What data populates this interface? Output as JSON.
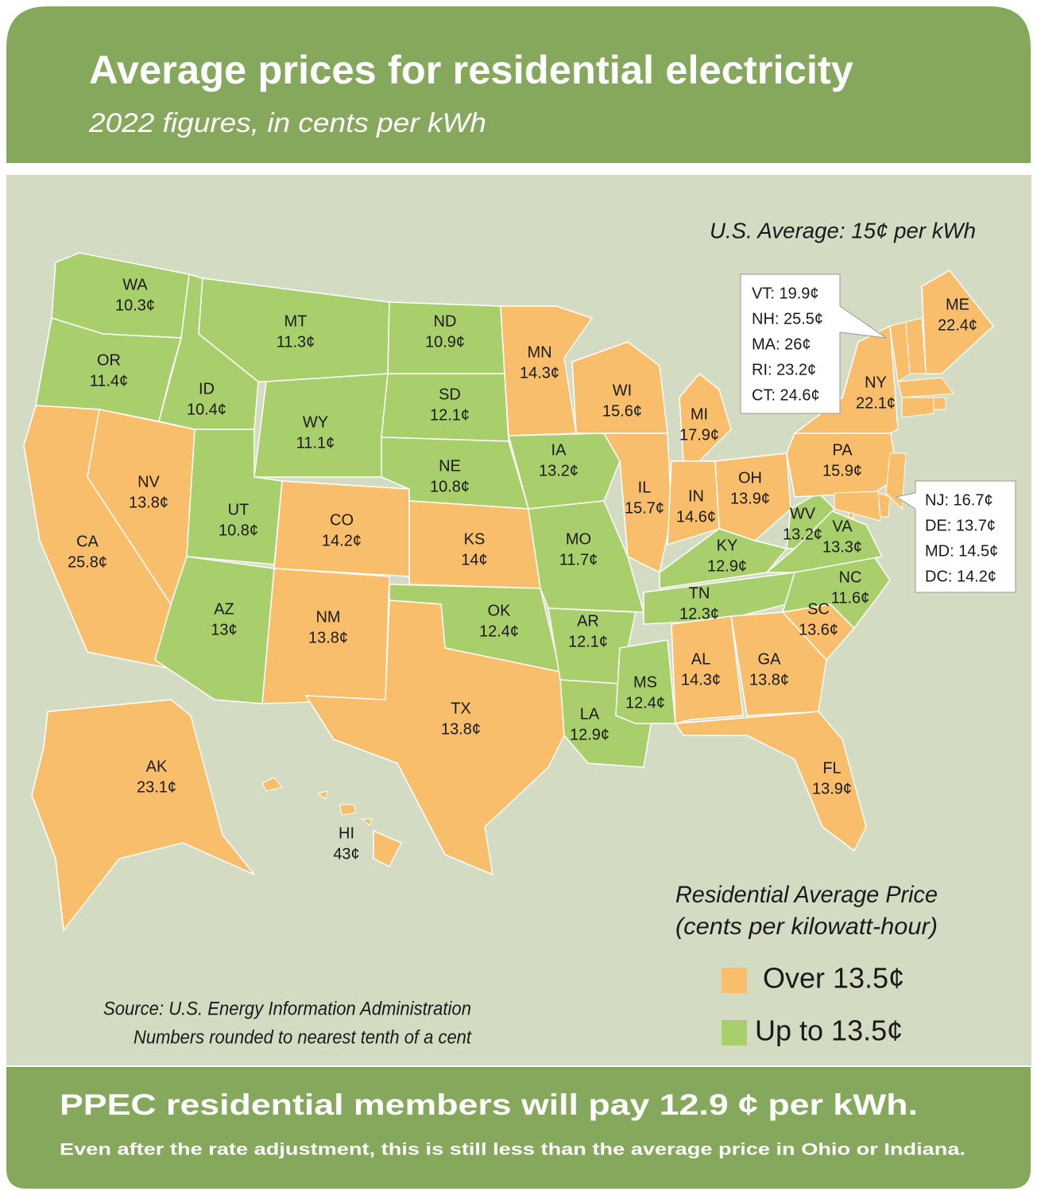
{
  "header": {
    "title": "Average prices for residential electricity",
    "subtitle": "2022 figures, in cents per kWh"
  },
  "us_average": "U.S. Average: 15¢ per kWh",
  "states": [
    {
      "abbr": "WA",
      "price": "10.3¢",
      "color": "#a9cf6d"
    },
    {
      "abbr": "OR",
      "price": "11.4¢",
      "color": "#a9cf6d"
    },
    {
      "abbr": "CA",
      "price": "25.8¢",
      "color": "#f9be6b"
    },
    {
      "abbr": "NV",
      "price": "13.8¢",
      "color": "#f9be6b"
    },
    {
      "abbr": "ID",
      "price": "10.4¢",
      "color": "#a9cf6d"
    },
    {
      "abbr": "MT",
      "price": "11.3¢",
      "color": "#a9cf6d"
    },
    {
      "abbr": "WY",
      "price": "11.1¢",
      "color": "#a9cf6d"
    },
    {
      "abbr": "UT",
      "price": "10.8¢",
      "color": "#a9cf6d"
    },
    {
      "abbr": "AZ",
      "price": "13¢",
      "color": "#a9cf6d"
    },
    {
      "abbr": "CO",
      "price": "14.2¢",
      "color": "#f9be6b"
    },
    {
      "abbr": "NM",
      "price": "13.8¢",
      "color": "#f9be6b"
    },
    {
      "abbr": "ND",
      "price": "10.9¢",
      "color": "#a9cf6d"
    },
    {
      "abbr": "SD",
      "price": "12.1¢",
      "color": "#a9cf6d"
    },
    {
      "abbr": "NE",
      "price": "10.8¢",
      "color": "#a9cf6d"
    },
    {
      "abbr": "KS",
      "price": "14¢",
      "color": "#f9be6b"
    },
    {
      "abbr": "OK",
      "price": "12.4¢",
      "color": "#a9cf6d"
    },
    {
      "abbr": "TX",
      "price": "13.8¢",
      "color": "#f9be6b"
    },
    {
      "abbr": "MN",
      "price": "14.3¢",
      "color": "#f9be6b"
    },
    {
      "abbr": "IA",
      "price": "13.2¢",
      "color": "#a9cf6d"
    },
    {
      "abbr": "MO",
      "price": "11.7¢",
      "color": "#a9cf6d"
    },
    {
      "abbr": "AR",
      "price": "12.1¢",
      "color": "#a9cf6d"
    },
    {
      "abbr": "LA",
      "price": "12.9¢",
      "color": "#a9cf6d"
    },
    {
      "abbr": "WI",
      "price": "15.6¢",
      "color": "#f9be6b"
    },
    {
      "abbr": "IL",
      "price": "15.7¢",
      "color": "#f9be6b"
    },
    {
      "abbr": "MS",
      "price": "12.4¢",
      "color": "#a9cf6d"
    },
    {
      "abbr": "MI",
      "price": "17.9¢",
      "color": "#f9be6b"
    },
    {
      "abbr": "IN",
      "price": "14.6¢",
      "color": "#f9be6b"
    },
    {
      "abbr": "OH",
      "price": "13.9¢",
      "color": "#f9be6b"
    },
    {
      "abbr": "KY",
      "price": "12.9¢",
      "color": "#a9cf6d"
    },
    {
      "abbr": "TN",
      "price": "12.3¢",
      "color": "#a9cf6d"
    },
    {
      "abbr": "AL",
      "price": "14.3¢",
      "color": "#f9be6b"
    },
    {
      "abbr": "GA",
      "price": "13.8¢",
      "color": "#f9be6b"
    },
    {
      "abbr": "FL",
      "price": "13.9¢",
      "color": "#f9be6b"
    },
    {
      "abbr": "SC",
      "price": "13.6¢",
      "color": "#f9be6b"
    },
    {
      "abbr": "NC",
      "price": "11.6¢",
      "color": "#a9cf6d"
    },
    {
      "abbr": "VA",
      "price": "13.3¢",
      "color": "#a9cf6d"
    },
    {
      "abbr": "WV",
      "price": "13.2¢",
      "color": "#a9cf6d"
    },
    {
      "abbr": "PA",
      "price": "15.9¢",
      "color": "#f9be6b"
    },
    {
      "abbr": "NY",
      "price": "22.1¢",
      "color": "#f9be6b"
    },
    {
      "abbr": "ME",
      "price": "22.4¢",
      "color": "#f9be6b"
    },
    {
      "abbr": "AK",
      "price": "23.1¢",
      "color": "#f9be6b"
    },
    {
      "abbr": "HI",
      "price": "43¢",
      "color": "#f9be6b"
    }
  ],
  "callouts": [
    [
      {
        "text": "VT: 19.9¢",
        "color": "#f9be6b"
      },
      {
        "text": "NH: 25.5¢",
        "color": "#f9be6b"
      },
      {
        "text": "MA: 26¢",
        "color": "#f9be6b"
      },
      {
        "text": "RI: 23.2¢",
        "color": "#f9be6b"
      },
      {
        "text": "CT: 24.6¢",
        "color": "#f9be6b"
      }
    ],
    [
      {
        "text": "NJ: 16.7¢",
        "color": "#f9be6b"
      },
      {
        "text": "DE: 13.7¢",
        "color": "#f9be6b"
      },
      {
        "text": "MD: 14.5¢",
        "color": "#f9be6b"
      },
      {
        "text": "DC: 14.2¢",
        "color": "#f9be6b"
      }
    ]
  ],
  "legend": {
    "title": [
      "Residential Average Price",
      "(cents per kilowatt-hour)"
    ],
    "items": [
      {
        "label": "Over 13.5¢",
        "color": "#f9be6b"
      },
      {
        "label": "Up to 13.5¢",
        "color": "#a9cf6d"
      }
    ]
  },
  "source": [
    "Source: U.S. Energy Information Administration",
    "Numbers rounded to nearest tenth of a cent"
  ],
  "footer": {
    "headline": "PPEC residential members will pay 12.9 ¢ per kWh.",
    "note": "Even after the rate adjustment, this is still less than the average price in Ohio or Indiana."
  }
}
